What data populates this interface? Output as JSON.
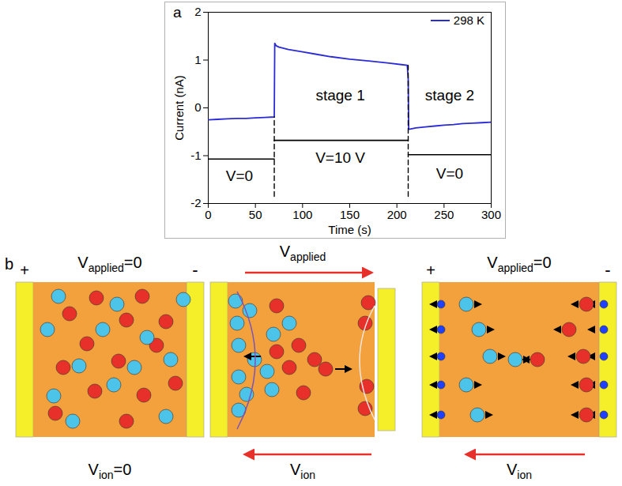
{
  "chart_data": {
    "type": "line",
    "label": "a",
    "xlabel": "Time (s)",
    "ylabel": "Current (nA)",
    "xlim": [
      0,
      300
    ],
    "xticks": [
      0,
      50,
      100,
      150,
      200,
      250,
      300
    ],
    "ylim": [
      -2,
      2
    ],
    "yticks": [
      -2,
      -1,
      0,
      1,
      2
    ],
    "legend": "upper right",
    "series": [
      {
        "name": "298 K",
        "color": "#2b2bd6",
        "x": [
          0,
          10,
          20,
          30,
          40,
          50,
          60,
          70,
          70.5,
          72,
          75,
          85,
          100,
          115,
          130,
          150,
          170,
          190,
          211,
          212,
          212.5,
          215,
          220,
          230,
          240,
          250,
          260,
          270,
          280,
          290,
          300
        ],
        "values": [
          -0.25,
          -0.24,
          -0.23,
          -0.22,
          -0.22,
          -0.21,
          -0.2,
          -0.19,
          1.35,
          1.3,
          1.27,
          1.22,
          1.17,
          1.12,
          1.07,
          1.02,
          0.98,
          0.94,
          0.89,
          0.6,
          -0.45,
          -0.44,
          -0.42,
          -0.4,
          -0.38,
          -0.36,
          -0.35,
          -0.33,
          -0.32,
          -0.31,
          -0.3
        ]
      },
      {
        "color": "#000000",
        "x": [
          0,
          70
        ],
        "values": [
          -1.07,
          -1.07
        ]
      },
      {
        "color": "#000000",
        "x": [
          70,
          212
        ],
        "values": [
          -0.68,
          -0.68
        ]
      },
      {
        "color": "#000000",
        "x": [
          212,
          300
        ],
        "values": [
          -0.98,
          -0.98
        ]
      },
      {
        "color": "#000000",
        "line_style": "dashed",
        "x": [
          70,
          70
        ],
        "values": [
          -1.85,
          -0.19
        ]
      },
      {
        "color": "#000000",
        "line_style": "dashed",
        "x": [
          212,
          212
        ],
        "values": [
          -1.85,
          0.89
        ]
      }
    ],
    "annotations": [
      {
        "text": "stage 1",
        "x": 140,
        "y": 0.25
      },
      {
        "text": "stage 2",
        "x": 256,
        "y": 0.25
      },
      {
        "text": "V=0",
        "x": 33,
        "y": -1.42
      },
      {
        "text": "V=10 V",
        "x": 140,
        "y": -1.05
      },
      {
        "text": "V=0",
        "x": 256,
        "y": -1.38
      }
    ]
  },
  "diagram": {
    "label": "b",
    "panels": [
      {
        "top": {
          "base": "V",
          "sub": "applied",
          "tail": "=0"
        },
        "bottom": {
          "base": "V",
          "sub": "ion",
          "tail": "=0"
        },
        "left": "+",
        "right": "-"
      },
      {
        "top": {
          "base": "V",
          "sub": "applied"
        },
        "bottom": {
          "base": "V",
          "sub": "ion"
        }
      },
      {
        "top": {
          "base": "V",
          "sub": "applied",
          "tail": "=0"
        },
        "bottom": {
          "base": "V",
          "sub": "ion"
        },
        "left": "+",
        "right": "-"
      }
    ]
  }
}
